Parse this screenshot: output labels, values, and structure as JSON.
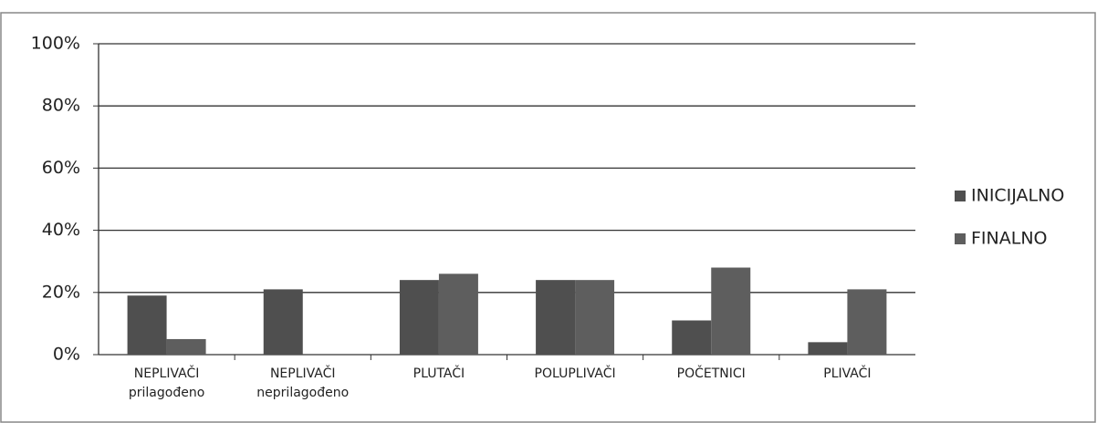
{
  "chart_data": {
    "type": "bar",
    "categories": [
      "NEPLIVAČI prilagođeno",
      "NEPLIVAČI neprilagođeno",
      "PLUTAČI",
      "POLUPLIVAČI",
      "POČETNICI",
      "PLIVAČI"
    ],
    "series": [
      {
        "name": "INICIJALNO",
        "color": "#4f4f4f",
        "values": [
          19,
          21,
          24,
          24,
          11,
          4
        ]
      },
      {
        "name": "FINALNO",
        "color": "#5e5e5e",
        "values": [
          5,
          0,
          26,
          24,
          28,
          21
        ]
      }
    ],
    "ylim": [
      0,
      100
    ],
    "yticks": [
      {
        "value": 0,
        "label": "0%"
      },
      {
        "value": 20,
        "label": "20%"
      },
      {
        "value": 40,
        "label": "40%"
      },
      {
        "value": 60,
        "label": "60%"
      },
      {
        "value": 80,
        "label": "80%"
      },
      {
        "value": 100,
        "label": "100%"
      }
    ],
    "grid": true,
    "legend": "right"
  }
}
